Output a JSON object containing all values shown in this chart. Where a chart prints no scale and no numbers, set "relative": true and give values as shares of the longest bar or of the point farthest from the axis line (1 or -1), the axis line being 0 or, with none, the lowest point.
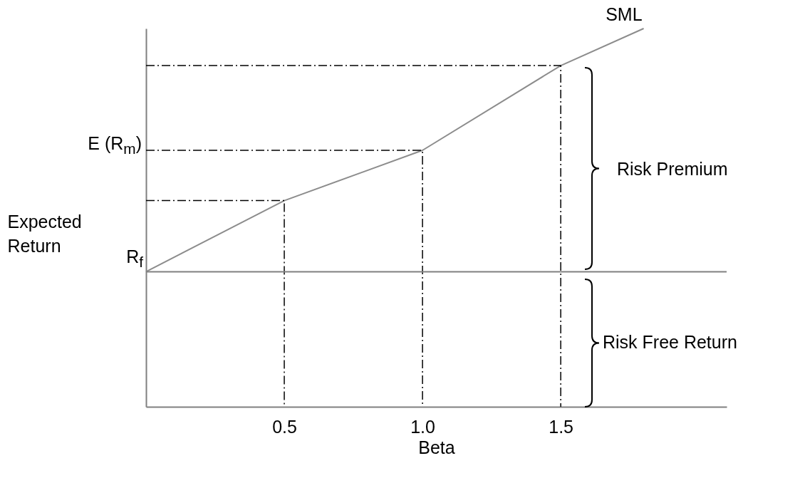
{
  "chart_data": {
    "type": "line",
    "xlabel": "Beta",
    "ylabel": "Expected Return",
    "relative": true,
    "x": [
      0,
      0.5,
      1.0,
      1.5,
      1.8
    ],
    "series": [
      {
        "name": "SML",
        "color": "#8c8c8c",
        "values": [
          0.357,
          0.545,
          0.678,
          0.902,
          1
        ]
      },
      {
        "color": "#000000",
        "line_style": "dashed",
        "x": [
          0,
          0.5,
          0.5
        ],
        "values": [
          0.545,
          0.545,
          0
        ]
      },
      {
        "color": "#000000",
        "line_style": "dashed",
        "x": [
          0,
          1,
          1
        ],
        "values": [
          0.678,
          0.678,
          0
        ]
      },
      {
        "color": "#000000",
        "line_style": "dashed",
        "x": [
          0,
          1.5,
          1.5
        ],
        "values": [
          0.902,
          0.902,
          0
        ]
      }
    ],
    "xlim": [
      0,
      2.1
    ],
    "xticks": [
      0.5,
      {
        "value": 1,
        "label": "1.0"
      },
      1.5
    ],
    "ref_lines": [
      {
        "axis": "y",
        "value": 0.357,
        "label": "R$_{f}$",
        "color": "#808080",
        "line_style": "solid"
      }
    ],
    "annotations": [
      "E (R$_{m}$)",
      "Risk Premium",
      "Risk Free Return"
    ],
    "grid": false,
    "marker": "none"
  }
}
